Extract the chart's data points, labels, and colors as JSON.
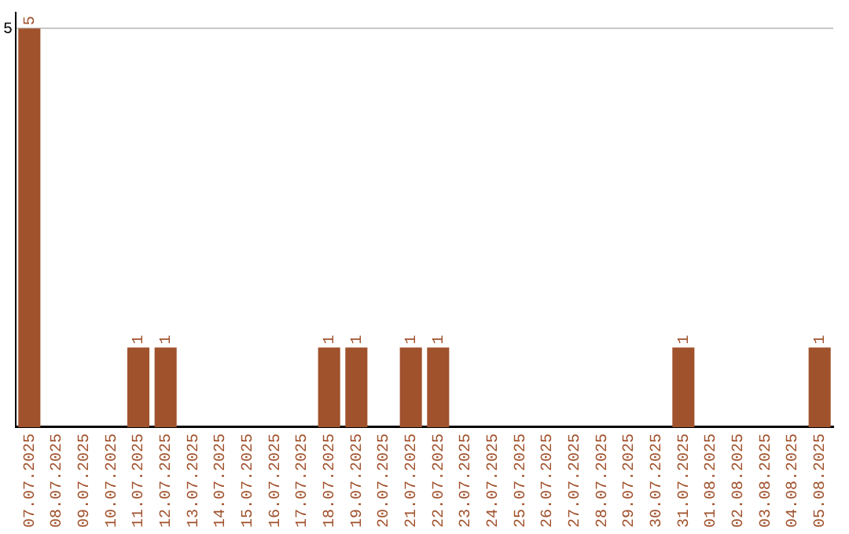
{
  "chart_data": {
    "type": "bar",
    "categories": [
      "07.07.2025",
      "08.07.2025",
      "09.07.2025",
      "10.07.2025",
      "11.07.2025",
      "12.07.2025",
      "13.07.2025",
      "14.07.2025",
      "15.07.2025",
      "16.07.2025",
      "17.07.2025",
      "18.07.2025",
      "19.07.2025",
      "20.07.2025",
      "21.07.2025",
      "22.07.2025",
      "23.07.2025",
      "24.07.2025",
      "25.07.2025",
      "26.07.2025",
      "27.07.2025",
      "28.07.2025",
      "29.07.2025",
      "30.07.2025",
      "31.07.2025",
      "01.08.2025",
      "02.08.2025",
      "03.08.2025",
      "04.08.2025",
      "05.08.2025"
    ],
    "values": [
      5,
      0,
      0,
      0,
      1,
      1,
      0,
      0,
      0,
      0,
      0,
      1,
      1,
      0,
      1,
      1,
      0,
      0,
      0,
      0,
      0,
      0,
      0,
      0,
      1,
      0,
      0,
      0,
      0,
      1
    ],
    "value_labels": [
      "5",
      null,
      null,
      null,
      "1",
      "1",
      null,
      null,
      null,
      null,
      null,
      "1",
      "1",
      null,
      "1",
      "1",
      null,
      null,
      null,
      null,
      null,
      null,
      null,
      null,
      "1",
      null,
      null,
      null,
      null,
      "1"
    ],
    "color": "#a0522d",
    "ylim": [
      0,
      5.2
    ],
    "yticks": [
      5
    ],
    "grid": "y",
    "legend": false
  }
}
